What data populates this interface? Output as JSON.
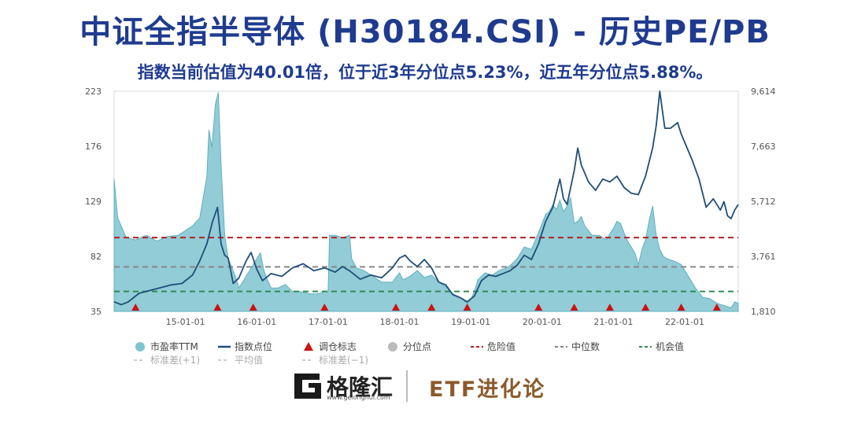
{
  "title": "中证全指半导体 (H30184.CSI) - 历史PE/PB",
  "subtitle": "指数当前估值为40.01倍，位于近3年分位点5.23%，近五年分位点5.88%。",
  "brand": {
    "name": "格隆汇",
    "url": "www.gelonghui.com",
    "etf": "ETF进化论"
  },
  "colors": {
    "pe_fill": "#7fc3cf",
    "pe_line": "#5fb0c0",
    "index_line": "#1f4e79",
    "marker": "#cc1111",
    "danger": "#b22222",
    "median": "#888888",
    "opportunity": "#2e8b57",
    "title": "#1f3b8f"
  },
  "chart_data": {
    "type": "area",
    "left_axis": {
      "ticks": [
        223,
        176,
        129,
        82,
        35
      ],
      "min": 35,
      "max": 223
    },
    "right_axis": {
      "ticks": [
        "9,614",
        "7,663",
        "5,712",
        "3,761",
        "1,810"
      ],
      "min": 1810,
      "max": 9614
    },
    "x_ticks": [
      "15-01-01",
      "16-01-01",
      "17-01-01",
      "18-01-01",
      "19-01-01",
      "20-01-01",
      "21-01-01",
      "22-01-01"
    ],
    "x_range": [
      2014.0,
      2022.75
    ],
    "reference_lines": {
      "danger": 98,
      "median": 73,
      "opportunity": 52
    },
    "pe_series": [
      [
        2014.0,
        148
      ],
      [
        2014.05,
        115
      ],
      [
        2014.1,
        108
      ],
      [
        2014.17,
        98
      ],
      [
        2014.3,
        96
      ],
      [
        2014.45,
        100
      ],
      [
        2014.6,
        95
      ],
      [
        2014.75,
        99
      ],
      [
        2014.9,
        100
      ],
      [
        2015.0,
        104
      ],
      [
        2015.1,
        108
      ],
      [
        2015.2,
        115
      ],
      [
        2015.3,
        150
      ],
      [
        2015.33,
        190
      ],
      [
        2015.37,
        175
      ],
      [
        2015.42,
        212
      ],
      [
        2015.46,
        222
      ],
      [
        2015.5,
        160
      ],
      [
        2015.55,
        100
      ],
      [
        2015.6,
        80
      ],
      [
        2015.7,
        65
      ],
      [
        2015.75,
        55
      ],
      [
        2015.85,
        65
      ],
      [
        2016.0,
        80
      ],
      [
        2016.05,
        85
      ],
      [
        2016.1,
        70
      ],
      [
        2016.15,
        62
      ],
      [
        2016.2,
        55
      ],
      [
        2016.3,
        55
      ],
      [
        2016.4,
        58
      ],
      [
        2016.5,
        52
      ],
      [
        2016.6,
        52
      ],
      [
        2016.75,
        50
      ],
      [
        2016.85,
        50
      ],
      [
        2016.95,
        52
      ],
      [
        2017.0,
        52
      ],
      [
        2017.02,
        100
      ],
      [
        2017.1,
        100
      ],
      [
        2017.2,
        98
      ],
      [
        2017.3,
        100
      ],
      [
        2017.33,
        80
      ],
      [
        2017.4,
        72
      ],
      [
        2017.5,
        70
      ],
      [
        2017.6,
        66
      ],
      [
        2017.75,
        60
      ],
      [
        2017.9,
        60
      ],
      [
        2018.0,
        68
      ],
      [
        2018.05,
        62
      ],
      [
        2018.15,
        65
      ],
      [
        2018.25,
        70
      ],
      [
        2018.35,
        64
      ],
      [
        2018.45,
        66
      ],
      [
        2018.55,
        60
      ],
      [
        2018.65,
        56
      ],
      [
        2018.75,
        50
      ],
      [
        2018.85,
        47
      ],
      [
        2018.95,
        42
      ],
      [
        2019.0,
        45
      ],
      [
        2019.05,
        52
      ],
      [
        2019.1,
        62
      ],
      [
        2019.2,
        68
      ],
      [
        2019.3,
        66
      ],
      [
        2019.4,
        70
      ],
      [
        2019.5,
        72
      ],
      [
        2019.55,
        74
      ],
      [
        2019.65,
        80
      ],
      [
        2019.75,
        90
      ],
      [
        2019.85,
        88
      ],
      [
        2019.9,
        95
      ],
      [
        2020.0,
        110
      ],
      [
        2020.05,
        118
      ],
      [
        2020.1,
        120
      ],
      [
        2020.15,
        126
      ],
      [
        2020.2,
        122
      ],
      [
        2020.25,
        130
      ],
      [
        2020.3,
        120
      ],
      [
        2020.35,
        125
      ],
      [
        2020.4,
        132
      ],
      [
        2020.45,
        110
      ],
      [
        2020.5,
        112
      ],
      [
        2020.55,
        116
      ],
      [
        2020.6,
        108
      ],
      [
        2020.7,
        100
      ],
      [
        2020.8,
        100
      ],
      [
        2020.9,
        96
      ],
      [
        2021.0,
        106
      ],
      [
        2021.05,
        112
      ],
      [
        2021.1,
        110
      ],
      [
        2021.15,
        102
      ],
      [
        2021.2,
        95
      ],
      [
        2021.25,
        90
      ],
      [
        2021.3,
        85
      ],
      [
        2021.35,
        75
      ],
      [
        2021.4,
        88
      ],
      [
        2021.45,
        96
      ],
      [
        2021.5,
        112
      ],
      [
        2021.55,
        125
      ],
      [
        2021.6,
        100
      ],
      [
        2021.65,
        88
      ],
      [
        2021.7,
        82
      ],
      [
        2021.75,
        80
      ],
      [
        2021.85,
        78
      ],
      [
        2021.95,
        75
      ],
      [
        2022.05,
        65
      ],
      [
        2022.15,
        55
      ],
      [
        2022.25,
        47
      ],
      [
        2022.35,
        46
      ],
      [
        2022.45,
        42
      ],
      [
        2022.55,
        40
      ],
      [
        2022.65,
        38
      ],
      [
        2022.7,
        43
      ],
      [
        2022.75,
        42
      ]
    ],
    "index_series": [
      [
        2014.0,
        2150
      ],
      [
        2014.1,
        2050
      ],
      [
        2014.2,
        2150
      ],
      [
        2014.35,
        2450
      ],
      [
        2014.5,
        2550
      ],
      [
        2014.65,
        2650
      ],
      [
        2014.8,
        2750
      ],
      [
        2014.95,
        2800
      ],
      [
        2015.1,
        3100
      ],
      [
        2015.2,
        3600
      ],
      [
        2015.3,
        4200
      ],
      [
        2015.38,
        5000
      ],
      [
        2015.45,
        5500
      ],
      [
        2015.5,
        4200
      ],
      [
        2015.55,
        3800
      ],
      [
        2015.6,
        3700
      ],
      [
        2015.67,
        2800
      ],
      [
        2015.75,
        3000
      ],
      [
        2015.85,
        3600
      ],
      [
        2015.92,
        3900
      ],
      [
        2016.0,
        3300
      ],
      [
        2016.08,
        2900
      ],
      [
        2016.2,
        3150
      ],
      [
        2016.35,
        3050
      ],
      [
        2016.5,
        3350
      ],
      [
        2016.65,
        3500
      ],
      [
        2016.8,
        3250
      ],
      [
        2016.95,
        3350
      ],
      [
        2017.1,
        3200
      ],
      [
        2017.2,
        3400
      ],
      [
        2017.3,
        3250
      ],
      [
        2017.45,
        2950
      ],
      [
        2017.6,
        3100
      ],
      [
        2017.75,
        3000
      ],
      [
        2017.9,
        3350
      ],
      [
        2018.0,
        3700
      ],
      [
        2018.08,
        3800
      ],
      [
        2018.15,
        3600
      ],
      [
        2018.25,
        3400
      ],
      [
        2018.35,
        3650
      ],
      [
        2018.45,
        3350
      ],
      [
        2018.55,
        2850
      ],
      [
        2018.65,
        2750
      ],
      [
        2018.75,
        2400
      ],
      [
        2018.85,
        2300
      ],
      [
        2018.95,
        2150
      ],
      [
        2019.05,
        2350
      ],
      [
        2019.15,
        2900
      ],
      [
        2019.25,
        3100
      ],
      [
        2019.35,
        3050
      ],
      [
        2019.45,
        3150
      ],
      [
        2019.55,
        3250
      ],
      [
        2019.65,
        3450
      ],
      [
        2019.75,
        3800
      ],
      [
        2019.85,
        3650
      ],
      [
        2019.95,
        4200
      ],
      [
        2020.05,
        5000
      ],
      [
        2020.15,
        5500
      ],
      [
        2020.25,
        6500
      ],
      [
        2020.3,
        5800
      ],
      [
        2020.35,
        5600
      ],
      [
        2020.45,
        6800
      ],
      [
        2020.5,
        7600
      ],
      [
        2020.55,
        7000
      ],
      [
        2020.65,
        6400
      ],
      [
        2020.75,
        6100
      ],
      [
        2020.85,
        6500
      ],
      [
        2020.95,
        6400
      ],
      [
        2021.05,
        6600
      ],
      [
        2021.15,
        6200
      ],
      [
        2021.25,
        6000
      ],
      [
        2021.35,
        5950
      ],
      [
        2021.45,
        6600
      ],
      [
        2021.55,
        7600
      ],
      [
        2021.6,
        8400
      ],
      [
        2021.65,
        9614
      ],
      [
        2021.72,
        8300
      ],
      [
        2021.8,
        8300
      ],
      [
        2021.9,
        8500
      ],
      [
        2021.95,
        8100
      ],
      [
        2022.0,
        7800
      ],
      [
        2022.1,
        7200
      ],
      [
        2022.2,
        6500
      ],
      [
        2022.3,
        5500
      ],
      [
        2022.4,
        5800
      ],
      [
        2022.5,
        5400
      ],
      [
        2022.55,
        5700
      ],
      [
        2022.6,
        5200
      ],
      [
        2022.65,
        5100
      ],
      [
        2022.7,
        5400
      ],
      [
        2022.75,
        5600
      ]
    ],
    "rebalance_markers": [
      2014.3,
      2015.45,
      2015.95,
      2016.95,
      2017.95,
      2018.45,
      2018.95,
      2019.95,
      2020.45,
      2020.95,
      2021.45,
      2021.95,
      2022.45
    ],
    "legend": [
      {
        "label": "市盈率TTM",
        "kind": "dot",
        "color": "#7fc3cf"
      },
      {
        "label": "指数点位",
        "kind": "line",
        "color": "#1f4e79"
      },
      {
        "label": "调仓标志",
        "kind": "triangle",
        "color": "#cc1111"
      },
      {
        "label": "分位点",
        "kind": "dot",
        "color": "#bbbbbb"
      },
      {
        "label": "危险值",
        "kind": "dash",
        "color": "#b22222"
      },
      {
        "label": "中位数",
        "kind": "dash",
        "color": "#888888"
      },
      {
        "label": "机会值",
        "kind": "dash",
        "color": "#2e8b57"
      }
    ],
    "legend_sub": [
      {
        "label": "标准差(+1)"
      },
      {
        "label": "平均值"
      },
      {
        "label": "标准差(−1)"
      }
    ]
  }
}
